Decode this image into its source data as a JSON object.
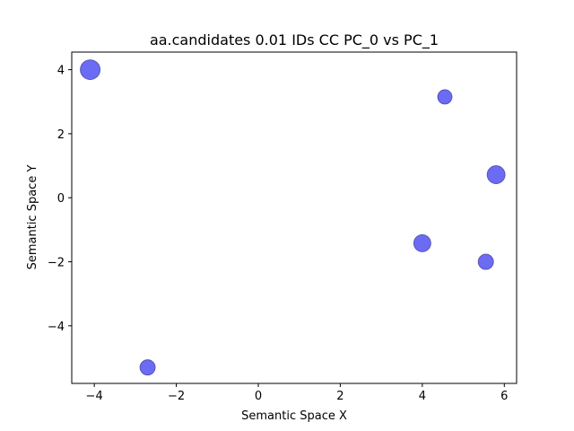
{
  "chart_data": {
    "type": "scatter",
    "title": "aa.candidates 0.01 IDs CC PC_0 vs PC_1",
    "xlabel": "Semantic Space X",
    "ylabel": "Semantic Space Y",
    "xlim": [
      -4.55,
      6.3
    ],
    "ylim": [
      -5.8,
      4.55
    ],
    "xticks": [
      -4,
      -2,
      0,
      2,
      4,
      6
    ],
    "yticks": [
      -4,
      -2,
      0,
      2,
      4
    ],
    "xtick_labels": [
      "−4",
      "−2",
      "0",
      "2",
      "4",
      "6"
    ],
    "ytick_labels": [
      "−4",
      "−2",
      "0",
      "2",
      "4"
    ],
    "grid": false,
    "legend": "none",
    "point_color": "#5c5cf2",
    "series": [
      {
        "x": [
          -4.1,
          4.55,
          5.8,
          4.0,
          5.55,
          -2.7
        ],
        "y": [
          4.0,
          3.15,
          0.72,
          -1.42,
          -2.0,
          -5.3
        ],
        "size": [
          11,
          8,
          10,
          9.5,
          8.5,
          8.5
        ]
      }
    ]
  }
}
